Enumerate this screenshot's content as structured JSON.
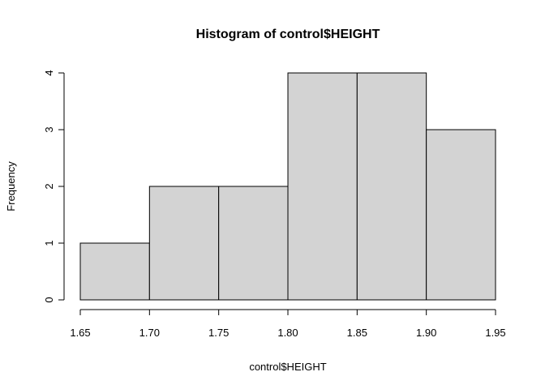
{
  "chart_data": {
    "type": "bar",
    "title": "Histogram of control$HEIGHT",
    "xlabel": "control$HEIGHT",
    "ylabel": "Frequency",
    "bins": [
      {
        "start": 1.65,
        "end": 1.7,
        "count": 1
      },
      {
        "start": 1.7,
        "end": 1.75,
        "count": 2
      },
      {
        "start": 1.75,
        "end": 1.8,
        "count": 2
      },
      {
        "start": 1.8,
        "end": 1.85,
        "count": 4
      },
      {
        "start": 1.85,
        "end": 1.9,
        "count": 4
      },
      {
        "start": 1.9,
        "end": 1.95,
        "count": 3
      }
    ],
    "xlim": [
      1.65,
      1.95
    ],
    "ylim": [
      0,
      4
    ],
    "x_ticks": [
      "1.65",
      "1.70",
      "1.75",
      "1.80",
      "1.85",
      "1.90",
      "1.95"
    ],
    "y_ticks": [
      "0",
      "1",
      "2",
      "3",
      "4"
    ],
    "bar_color": "#d3d3d3",
    "edge_color": "#000000",
    "grid": false,
    "legend": "none"
  }
}
